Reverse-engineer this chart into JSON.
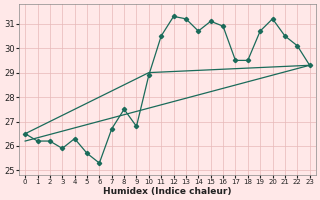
{
  "bg_color": "#ffe8e8",
  "grid_color": "#e8b8b8",
  "line_color": "#1a6b5a",
  "xlabel": "Humidex (Indice chaleur)",
  "xlim": [
    -0.5,
    23.5
  ],
  "ylim": [
    24.8,
    31.8
  ],
  "yticks": [
    25,
    26,
    27,
    28,
    29,
    30,
    31
  ],
  "xticks": [
    0,
    1,
    2,
    3,
    4,
    5,
    6,
    7,
    8,
    9,
    10,
    11,
    12,
    13,
    14,
    15,
    16,
    17,
    18,
    19,
    20,
    21,
    22,
    23
  ],
  "main_x": [
    0,
    1,
    2,
    3,
    4,
    5,
    6,
    7,
    8,
    9,
    10,
    11,
    12,
    13,
    14,
    15,
    16,
    17,
    18,
    19,
    20,
    21,
    22,
    23
  ],
  "main_y": [
    26.5,
    26.2,
    26.2,
    25.9,
    26.3,
    25.7,
    25.3,
    26.7,
    27.5,
    26.8,
    28.9,
    30.5,
    31.3,
    31.2,
    30.7,
    31.1,
    30.9,
    29.5,
    29.5,
    30.7,
    31.2,
    30.5,
    30.1,
    29.3
  ],
  "line2_x": [
    0,
    10,
    23
  ],
  "line2_y": [
    26.5,
    29.0,
    29.3
  ],
  "line3_x": [
    0,
    23
  ],
  "line3_y": [
    26.2,
    29.3
  ]
}
